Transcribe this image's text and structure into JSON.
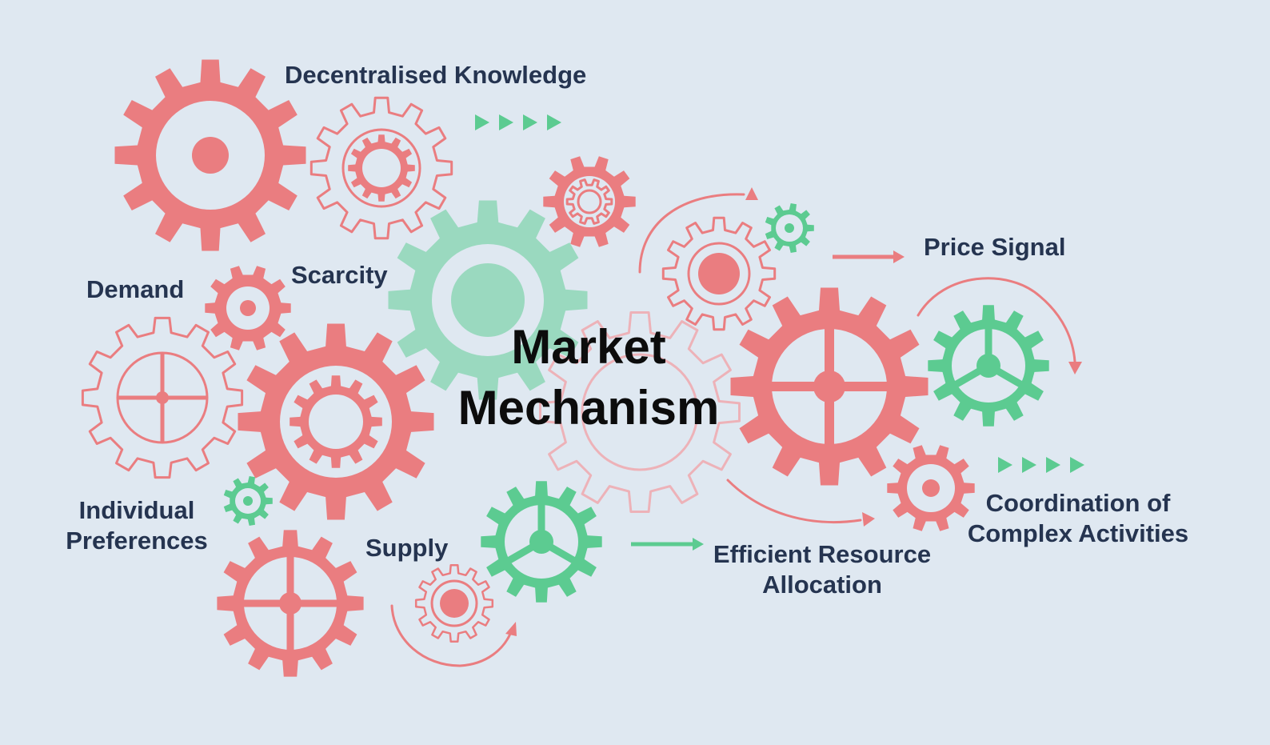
{
  "colors": {
    "background": "#dfe8f1",
    "red": "#ea7d80",
    "green": "#5ccb91",
    "light_green": "#9ad9bf",
    "pale_red": "#edb2b8",
    "text": "#253450",
    "title": "#0c0c0c"
  },
  "title": {
    "line1": "Market",
    "line2": "Mechanism"
  },
  "labels": {
    "decentralised_knowledge": "Decentralised Knowledge",
    "demand": "Demand",
    "scarcity": "Scarcity",
    "price_signal": "Price Signal",
    "individual_preferences": {
      "line1": "Individual",
      "line2": "Preferences"
    },
    "supply": "Supply",
    "efficient_resource_allocation": {
      "line1": "Efficient Resource",
      "line2": "Allocation"
    },
    "coordination": {
      "line1": "Coordination of",
      "line2": "Complex Activities"
    }
  },
  "icons": {
    "gears": "gear-icon",
    "chevrons": "play-chevron-icon",
    "arrows": "arrow-icon"
  }
}
